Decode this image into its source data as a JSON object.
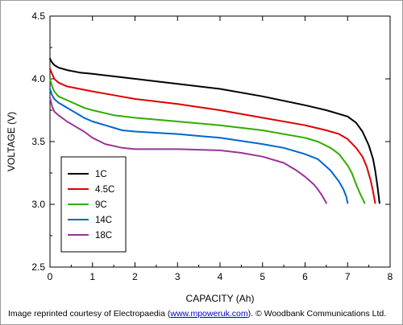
{
  "chart_data": {
    "type": "line",
    "xlabel": "CAPACITY (Ah)",
    "ylabel": "VOLTAGE (V)",
    "xlim": [
      0,
      8
    ],
    "ylim": [
      2.5,
      4.5
    ],
    "x_ticks": [
      "0",
      "1",
      "2",
      "3",
      "4",
      "5",
      "6",
      "7",
      "8"
    ],
    "y_ticks": [
      "2.5",
      "3.0",
      "3.5",
      "4.0",
      "4.5"
    ],
    "grid": false,
    "legend_position": "bottom-left",
    "series": [
      {
        "name": "1C",
        "color": "#000000",
        "x": [
          0,
          0.05,
          0.1,
          0.2,
          0.4,
          0.7,
          1.0,
          1.5,
          2.0,
          3.0,
          4.0,
          5.0,
          6.0,
          6.5,
          7.0,
          7.2,
          7.35,
          7.5,
          7.6,
          7.65,
          7.7,
          7.73,
          7.75
        ],
        "y": [
          4.16,
          4.13,
          4.11,
          4.09,
          4.07,
          4.05,
          4.04,
          4.02,
          4.0,
          3.96,
          3.92,
          3.86,
          3.79,
          3.75,
          3.7,
          3.65,
          3.58,
          3.47,
          3.36,
          3.27,
          3.15,
          3.07,
          3.01
        ]
      },
      {
        "name": "4.5C",
        "color": "#dd0000",
        "x": [
          0,
          0.05,
          0.1,
          0.2,
          0.4,
          0.7,
          1.0,
          1.5,
          2.0,
          3.0,
          4.0,
          5.0,
          6.0,
          6.5,
          6.8,
          7.0,
          7.2,
          7.35,
          7.45,
          7.55,
          7.6,
          7.65
        ],
        "y": [
          4.08,
          4.04,
          4.0,
          3.97,
          3.94,
          3.92,
          3.9,
          3.87,
          3.84,
          3.8,
          3.75,
          3.69,
          3.63,
          3.59,
          3.56,
          3.52,
          3.45,
          3.38,
          3.3,
          3.18,
          3.1,
          3.01
        ]
      },
      {
        "name": "9C",
        "color": "#33aa00",
        "x": [
          0,
          0.05,
          0.1,
          0.2,
          0.4,
          0.6,
          0.8,
          1.0,
          1.5,
          2.0,
          3.0,
          4.0,
          5.0,
          6.0,
          6.3,
          6.6,
          6.8,
          7.0,
          7.1,
          7.2,
          7.3,
          7.4
        ],
        "y": [
          4.0,
          3.94,
          3.9,
          3.86,
          3.83,
          3.8,
          3.77,
          3.75,
          3.71,
          3.69,
          3.66,
          3.63,
          3.59,
          3.53,
          3.5,
          3.45,
          3.4,
          3.31,
          3.25,
          3.16,
          3.08,
          3.01
        ]
      },
      {
        "name": "14C",
        "color": "#0066cc",
        "x": [
          0,
          0.05,
          0.1,
          0.2,
          0.4,
          0.6,
          0.8,
          1.0,
          1.3,
          1.7,
          2.0,
          3.0,
          4.0,
          5.0,
          5.5,
          6.0,
          6.3,
          6.6,
          6.8,
          6.9,
          6.97,
          7.0
        ],
        "y": [
          3.92,
          3.87,
          3.84,
          3.81,
          3.77,
          3.73,
          3.69,
          3.66,
          3.63,
          3.59,
          3.58,
          3.56,
          3.53,
          3.48,
          3.45,
          3.4,
          3.36,
          3.27,
          3.18,
          3.12,
          3.06,
          3.01
        ]
      },
      {
        "name": "18C",
        "color": "#993399",
        "x": [
          0,
          0.05,
          0.1,
          0.2,
          0.4,
          0.6,
          0.8,
          1.0,
          1.3,
          1.7,
          2.0,
          3.0,
          4.0,
          4.5,
          5.0,
          5.5,
          5.8,
          6.0,
          6.2,
          6.3,
          6.4,
          6.5
        ],
        "y": [
          3.85,
          3.78,
          3.74,
          3.71,
          3.66,
          3.62,
          3.58,
          3.53,
          3.48,
          3.45,
          3.44,
          3.44,
          3.43,
          3.41,
          3.38,
          3.33,
          3.27,
          3.22,
          3.16,
          3.12,
          3.07,
          3.01
        ]
      }
    ]
  },
  "credit": {
    "prefix": "Image reprinted courtesy of Electropaedia (",
    "link": "www.mpoweruk.com",
    "suffix": "). © Woodbank Communications Ltd."
  }
}
